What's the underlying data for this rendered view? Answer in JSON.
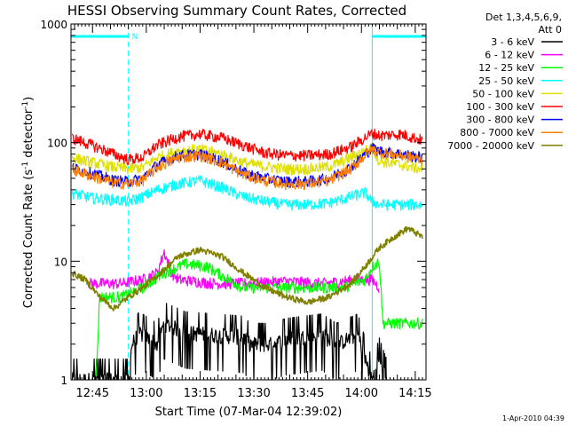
{
  "chart_data": {
    "type": "line",
    "title": "HESSI Observing Summary Count Rates, Corrected",
    "xlabel": "Start Time (07-Mar-04 12:39:02)",
    "ylabel_main": "Corrected Count Rate (s",
    "ylabel_sup1": "-1",
    "ylabel_mid": " detector",
    "ylabel_sup2": "-1",
    "ylabel_end": ")",
    "y_scale": "log",
    "ylim": [
      1,
      1000
    ],
    "xlim_minutes": [
      0,
      99
    ],
    "x_tick_labels": [
      "12:45",
      "13:00",
      "13:15",
      "13:30",
      "13:45",
      "14:00",
      "14:15"
    ],
    "x_tick_minutes": [
      6,
      21,
      36,
      51,
      66,
      81,
      96
    ],
    "y_tick_labels": [
      "1",
      "10",
      "100",
      "1000"
    ],
    "y_tick_values": [
      1,
      10,
      100,
      1000
    ],
    "legend_header_1": "Det 1,3,4,5,6,9,",
    "legend_header_2": "Att 0",
    "legend_placement": "right",
    "footer": "1-Apr-2010 04:39",
    "annotation_n": "N",
    "night_intervals_minutes": [
      [
        0,
        16
      ],
      [
        84,
        99
      ]
    ],
    "series": [
      {
        "name": "3 - 6 keV",
        "color": "#000000",
        "style": "noisy-low",
        "points": [
          [
            0,
            1
          ],
          [
            16,
            1
          ],
          [
            17,
            2
          ],
          [
            19,
            2.5
          ],
          [
            24,
            2
          ],
          [
            26,
            3
          ],
          [
            32,
            2.5
          ],
          [
            48,
            2.3
          ],
          [
            50,
            2
          ],
          [
            56,
            2
          ],
          [
            60,
            2.2
          ],
          [
            70,
            2.4
          ],
          [
            74,
            2
          ],
          [
            80,
            2.4
          ],
          [
            82,
            1.5
          ],
          [
            84,
            1
          ],
          [
            86,
            1.5
          ],
          [
            88,
            1
          ]
        ]
      },
      {
        "name": "6 - 12 keV",
        "color": "#ff00ff",
        "style": "noisy",
        "points": [
          [
            5,
            6.5
          ],
          [
            14,
            6.5
          ],
          [
            20,
            7
          ],
          [
            24,
            8
          ],
          [
            26,
            12
          ],
          [
            28,
            8
          ],
          [
            30,
            7
          ],
          [
            40,
            6.5
          ],
          [
            50,
            6.5
          ],
          [
            60,
            6.8
          ],
          [
            70,
            6.5
          ],
          [
            80,
            7
          ],
          [
            84,
            7
          ],
          [
            86,
            6
          ]
        ]
      },
      {
        "name": "12 - 25 keV",
        "color": "#00ff00",
        "style": "noisy",
        "points": [
          [
            7,
            1
          ],
          [
            8,
            5
          ],
          [
            14,
            5
          ],
          [
            20,
            6
          ],
          [
            26,
            8
          ],
          [
            32,
            9.5
          ],
          [
            38,
            9
          ],
          [
            44,
            7
          ],
          [
            48,
            6
          ],
          [
            56,
            6
          ],
          [
            66,
            6
          ],
          [
            76,
            6
          ],
          [
            82,
            7
          ],
          [
            84,
            9
          ],
          [
            86,
            10
          ],
          [
            87,
            3
          ],
          [
            98,
            3
          ]
        ]
      },
      {
        "name": "25 - 50 keV",
        "color": "#00ffff",
        "style": "noisy",
        "points": [
          [
            0,
            38
          ],
          [
            6,
            34
          ],
          [
            12,
            33
          ],
          [
            16,
            32
          ],
          [
            20,
            35
          ],
          [
            24,
            40
          ],
          [
            30,
            45
          ],
          [
            36,
            48
          ],
          [
            42,
            42
          ],
          [
            48,
            35
          ],
          [
            54,
            32
          ],
          [
            60,
            30
          ],
          [
            66,
            30
          ],
          [
            72,
            31
          ],
          [
            78,
            35
          ],
          [
            82,
            38
          ],
          [
            84,
            32
          ],
          [
            86,
            30
          ],
          [
            92,
            30
          ],
          [
            98,
            30
          ]
        ]
      },
      {
        "name": "50 - 100 keV",
        "color": "#e0e000",
        "style": "noisy",
        "points": [
          [
            0,
            75
          ],
          [
            6,
            68
          ],
          [
            12,
            62
          ],
          [
            16,
            60
          ],
          [
            20,
            62
          ],
          [
            24,
            75
          ],
          [
            30,
            85
          ],
          [
            36,
            88
          ],
          [
            42,
            80
          ],
          [
            48,
            68
          ],
          [
            54,
            63
          ],
          [
            60,
            60
          ],
          [
            66,
            60
          ],
          [
            72,
            63
          ],
          [
            76,
            70
          ],
          [
            80,
            80
          ],
          [
            84,
            90
          ],
          [
            86,
            70
          ],
          [
            92,
            65
          ],
          [
            98,
            60
          ]
        ]
      },
      {
        "name": "100 - 300 keV",
        "color": "#ff0000",
        "style": "noisy",
        "points": [
          [
            0,
            110
          ],
          [
            6,
            95
          ],
          [
            12,
            80
          ],
          [
            16,
            72
          ],
          [
            20,
            75
          ],
          [
            24,
            95
          ],
          [
            30,
            112
          ],
          [
            36,
            118
          ],
          [
            42,
            110
          ],
          [
            48,
            95
          ],
          [
            54,
            82
          ],
          [
            60,
            78
          ],
          [
            66,
            78
          ],
          [
            72,
            80
          ],
          [
            78,
            92
          ],
          [
            82,
            110
          ],
          [
            84,
            120
          ],
          [
            86,
            115
          ],
          [
            92,
            118
          ],
          [
            98,
            105
          ]
        ]
      },
      {
        "name": "300 - 800 keV",
        "color": "#0000ff",
        "style": "noisy",
        "points": [
          [
            0,
            62
          ],
          [
            6,
            55
          ],
          [
            12,
            48
          ],
          [
            16,
            47
          ],
          [
            20,
            50
          ],
          [
            24,
            65
          ],
          [
            30,
            78
          ],
          [
            36,
            80
          ],
          [
            42,
            70
          ],
          [
            48,
            56
          ],
          [
            54,
            50
          ],
          [
            60,
            47
          ],
          [
            66,
            47
          ],
          [
            72,
            50
          ],
          [
            78,
            62
          ],
          [
            82,
            80
          ],
          [
            84,
            90
          ],
          [
            86,
            85
          ],
          [
            92,
            80
          ],
          [
            98,
            75
          ]
        ]
      },
      {
        "name": "800 - 7000 keV",
        "color": "#ff8000",
        "style": "noisy",
        "points": [
          [
            0,
            60
          ],
          [
            6,
            52
          ],
          [
            12,
            46
          ],
          [
            16,
            45
          ],
          [
            20,
            48
          ],
          [
            24,
            62
          ],
          [
            30,
            75
          ],
          [
            36,
            78
          ],
          [
            42,
            68
          ],
          [
            48,
            54
          ],
          [
            54,
            48
          ],
          [
            60,
            45
          ],
          [
            66,
            45
          ],
          [
            72,
            48
          ],
          [
            78,
            60
          ],
          [
            82,
            78
          ],
          [
            84,
            88
          ],
          [
            86,
            83
          ],
          [
            92,
            78
          ],
          [
            98,
            72
          ]
        ]
      },
      {
        "name": "7000 - 20000 keV",
        "color": "#808000",
        "style": "smooth",
        "points": [
          [
            0,
            8
          ],
          [
            4,
            7
          ],
          [
            8,
            5
          ],
          [
            12,
            4
          ],
          [
            16,
            5
          ],
          [
            20,
            6
          ],
          [
            24,
            7.5
          ],
          [
            30,
            11
          ],
          [
            36,
            12.5
          ],
          [
            42,
            11
          ],
          [
            48,
            8
          ],
          [
            54,
            6
          ],
          [
            60,
            5
          ],
          [
            66,
            4.5
          ],
          [
            72,
            5
          ],
          [
            78,
            6.5
          ],
          [
            82,
            9
          ],
          [
            86,
            13
          ],
          [
            90,
            16
          ],
          [
            94,
            19
          ],
          [
            98,
            16
          ]
        ]
      }
    ]
  }
}
